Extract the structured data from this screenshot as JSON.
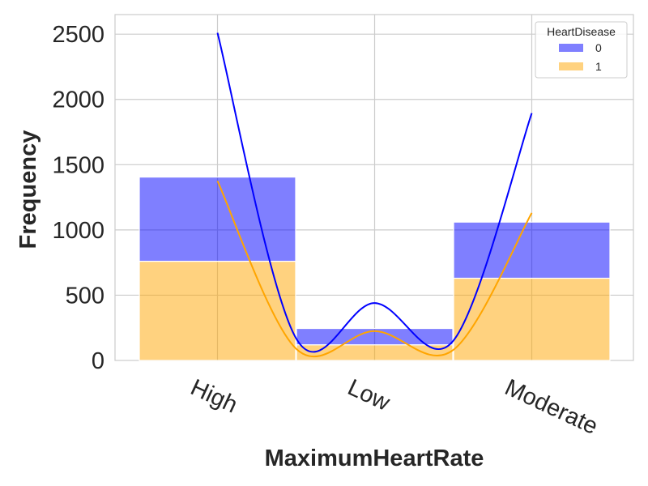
{
  "chart_data": {
    "type": "bar",
    "stacked": true,
    "title": "",
    "xlabel": "MaximumHeartRate",
    "ylabel": "Frequency",
    "categories": [
      "High",
      "Low",
      "Moderate"
    ],
    "ylim": [
      0,
      2650
    ],
    "yticks": [
      0,
      500,
      1000,
      1500,
      2000,
      2500
    ],
    "grid": true,
    "legend": {
      "title": "HeartDisease",
      "placement": "top-right"
    },
    "series": [
      {
        "name": "0",
        "color": "#0000ff",
        "values": [
          645,
          125,
          430
        ]
      },
      {
        "name": "1",
        "color": "#ffa500",
        "values": [
          760,
          120,
          630
        ]
      }
    ],
    "kde": [
      {
        "name": "0",
        "color": "#0000ff",
        "x": [
          0,
          0.5,
          1,
          1.5,
          2
        ],
        "y": [
          2510,
          170,
          440,
          150,
          1895
        ]
      },
      {
        "name": "1",
        "color": "#ffa500",
        "x": [
          0,
          0.5,
          1,
          1.5,
          2
        ],
        "y": [
          1375,
          90,
          225,
          80,
          1130
        ]
      }
    ]
  }
}
